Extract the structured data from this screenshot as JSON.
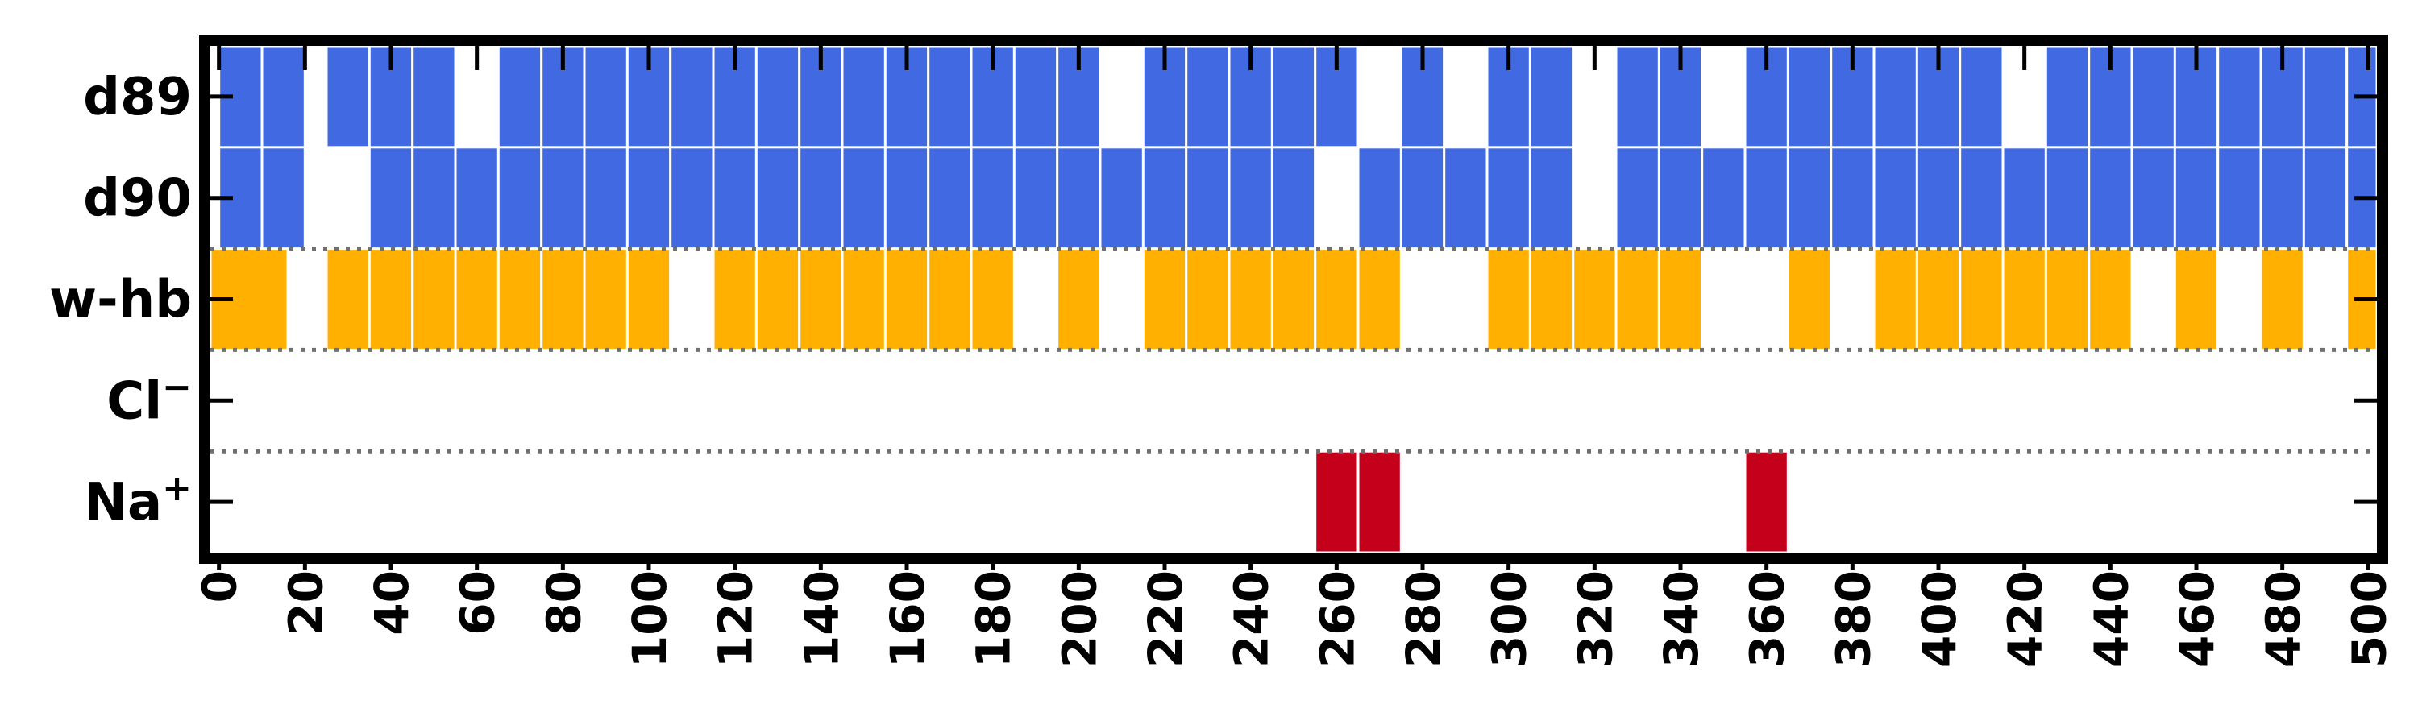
{
  "chart_data": {
    "type": "heatmap",
    "title": "",
    "xlabel": "",
    "ylabel": "",
    "xlim": [
      -2,
      502
    ],
    "bin_width": 10,
    "grid": false,
    "legend": "none",
    "x_ticks": [
      "0",
      "20",
      "40",
      "60",
      "80",
      "100",
      "120",
      "140",
      "160",
      "180",
      "200",
      "220",
      "240",
      "260",
      "280",
      "300",
      "320",
      "340",
      "360",
      "380",
      "400",
      "420",
      "440",
      "460",
      "480",
      "500"
    ],
    "rows": [
      {
        "label": "d89",
        "color": "#4169E1",
        "starts": [
          0,
          10,
          25,
          35,
          45,
          65,
          75,
          85,
          95,
          105,
          115,
          125,
          135,
          145,
          155,
          165,
          175,
          185,
          195,
          215,
          225,
          235,
          245,
          255,
          275,
          295,
          305,
          325,
          335,
          355,
          365,
          375,
          385,
          395,
          405,
          425,
          435,
          445,
          455,
          465,
          475,
          485,
          495
        ]
      },
      {
        "label": "d90",
        "color": "#4169E1",
        "starts": [
          0,
          10,
          35,
          45,
          55,
          65,
          75,
          85,
          95,
          105,
          115,
          125,
          135,
          145,
          155,
          165,
          175,
          185,
          195,
          205,
          215,
          225,
          235,
          245,
          265,
          275,
          285,
          295,
          305,
          325,
          335,
          345,
          355,
          365,
          375,
          385,
          395,
          405,
          415,
          425,
          435,
          445,
          455,
          465,
          475,
          485,
          495
        ]
      },
      {
        "label": "w-hb",
        "color": "#FFB000",
        "starts": [
          -2,
          6,
          25,
          35,
          45,
          55,
          65,
          75,
          85,
          95,
          115,
          125,
          135,
          145,
          155,
          165,
          175,
          195,
          215,
          225,
          235,
          245,
          255,
          265,
          295,
          305,
          315,
          325,
          335,
          365,
          385,
          395,
          405,
          415,
          425,
          435,
          455,
          475,
          495
        ]
      },
      {
        "label": "Cl⁻",
        "label_base": "Cl",
        "label_sup": "−",
        "color": "#C4001A",
        "starts": []
      },
      {
        "label": "Na⁺",
        "label_base": "Na",
        "label_sup": "+",
        "color": "#C4001A",
        "starts": [
          255,
          265,
          355
        ]
      }
    ]
  }
}
